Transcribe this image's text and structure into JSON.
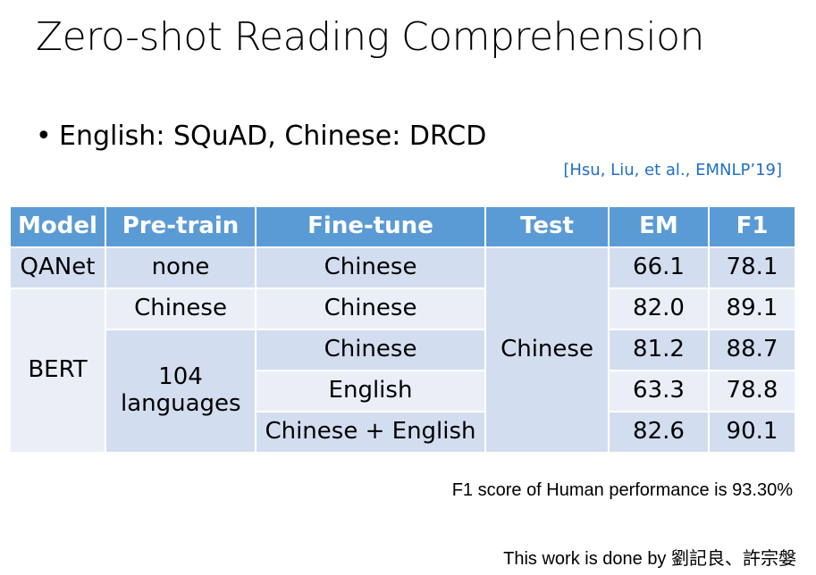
{
  "slide": {
    "title": "Zero-shot Reading Comprehension",
    "bullet": "English: SQuAD, Chinese: DRCD",
    "citation": "[Hsu, Liu, et al., EMNLP’19]",
    "human_note": "F1 score of Human performance is 93.30%",
    "credit": "This work is done by 劉記良、許宗媻"
  },
  "table": {
    "headers": [
      "Model",
      "Pre-train",
      "Fine-tune",
      "Test",
      "EM",
      "F1"
    ],
    "models": [
      "QANet",
      "BERT"
    ],
    "pretrain": [
      "none",
      "Chinese",
      "104 languages"
    ],
    "finetune": [
      "Chinese",
      "Chinese",
      "Chinese",
      "English",
      "Chinese + English"
    ],
    "test": "Chinese",
    "em": [
      "66.1",
      "82.0",
      "81.2",
      "63.3",
      "82.6"
    ],
    "f1": [
      "78.1",
      "89.1",
      "88.7",
      "78.8",
      "90.1"
    ]
  }
}
